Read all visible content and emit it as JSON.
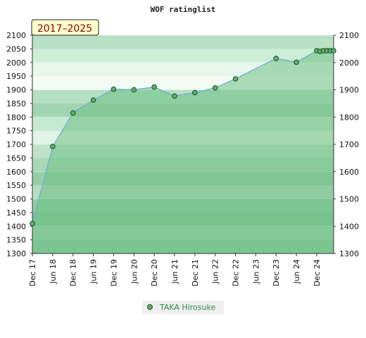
{
  "chart_data": {
    "type": "line",
    "title": "WOF ratinglist",
    "period_badge": "2017–2025",
    "xlabel": "",
    "ylabel": "",
    "ylim": [
      1300,
      2100
    ],
    "yticks": [
      1300,
      1350,
      1400,
      1450,
      1500,
      1550,
      1600,
      1650,
      1700,
      1750,
      1800,
      1850,
      1900,
      1950,
      2000,
      2050,
      2100
    ],
    "yticks_right": [
      1300,
      1400,
      1500,
      1600,
      1700,
      1800,
      1900,
      2000,
      2100
    ],
    "xticks": [
      "Dec 17",
      "Jun 18",
      "Dec 18",
      "Jun 19",
      "Dec 19",
      "Jun 20",
      "Dec 20",
      "Jun 21",
      "Dec 21",
      "Jun 22",
      "Dec 22",
      "Jun 23",
      "Dec 23",
      "Jun 24",
      "Dec 24"
    ],
    "x": [
      "2017-12",
      "2018-06",
      "2018-12",
      "2019-06",
      "2019-12",
      "2020-06",
      "2020-12",
      "2021-06",
      "2021-12",
      "2022-06",
      "2022-12",
      "2023-12",
      "2024-06",
      "2024-12",
      "2025-01",
      "2025-02",
      "2025-03",
      "2025-04",
      "2025-05"
    ],
    "series": [
      {
        "name": "TAKA Hirosuke",
        "values": [
          1410,
          1692,
          1815,
          1862,
          1902,
          1900,
          1910,
          1877,
          1890,
          1907,
          1940,
          2015,
          2001,
          2043,
          2041,
          2043,
          2043,
          2043,
          2043
        ]
      }
    ],
    "grid": true,
    "legend_position": "bottom-center",
    "colors": {
      "area_fill": "#6fbf85",
      "line": "#6aaed6",
      "marker_fill": "#5fae6e",
      "marker_stroke": "#1d4d2a",
      "badge_bg": "#ffffcc",
      "legend_bg": "#eeeeee"
    }
  }
}
